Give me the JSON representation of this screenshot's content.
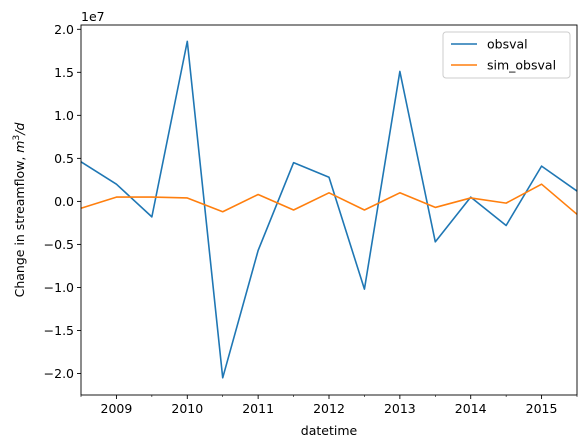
{
  "chart_data": {
    "type": "line",
    "xlabel": "datetime",
    "ylabel": "Change in streamflow, m³/d",
    "ylabel_base": "Change in streamflow, ",
    "ylabel_unit_m": "m",
    "ylabel_unit_exp": "3",
    "ylabel_unit_tail": "/d",
    "offset_text": "1e7",
    "x": [
      "2008-07",
      "2009-01",
      "2009-07",
      "2010-01",
      "2010-07",
      "2011-01",
      "2011-07",
      "2012-01",
      "2012-07",
      "2013-01",
      "2013-07",
      "2014-01",
      "2014-07",
      "2015-01",
      "2015-07"
    ],
    "xlim": [
      "2008-07",
      "2015-07"
    ],
    "xticks": [
      {
        "date": "2009-01",
        "label": "2009"
      },
      {
        "date": "2010-01",
        "label": "2010"
      },
      {
        "date": "2011-01",
        "label": "2011"
      },
      {
        "date": "2012-01",
        "label": "2012"
      },
      {
        "date": "2013-01",
        "label": "2013"
      },
      {
        "date": "2014-01",
        "label": "2014"
      },
      {
        "date": "2015-01",
        "label": "2015"
      }
    ],
    "ylim": [
      -2.25,
      2.05
    ],
    "yticks": [
      2.0,
      1.5,
      1.0,
      0.5,
      0.0,
      -0.5,
      -1.0,
      -1.5,
      -2.0
    ],
    "ytick_labels": [
      "2.0",
      "1.5",
      "1.0",
      "0.5",
      "0.0",
      "−0.5",
      "−1.0",
      "−1.5",
      "−2.0"
    ],
    "grid": false,
    "legend_position": "top-right",
    "series": [
      {
        "name": "obsval",
        "color": "#1f77b4",
        "values": [
          0.46,
          0.2,
          -0.18,
          1.86,
          -2.05,
          -0.57,
          0.45,
          0.28,
          -1.02,
          1.51,
          -0.47,
          0.05,
          -0.28,
          0.41,
          0.12
        ]
      },
      {
        "name": "sim_obsval",
        "color": "#ff7f0e",
        "values": [
          -0.08,
          0.05,
          0.05,
          0.04,
          -0.12,
          0.08,
          -0.1,
          0.1,
          -0.1,
          0.1,
          -0.07,
          0.04,
          -0.02,
          0.2,
          -0.15
        ]
      }
    ]
  }
}
